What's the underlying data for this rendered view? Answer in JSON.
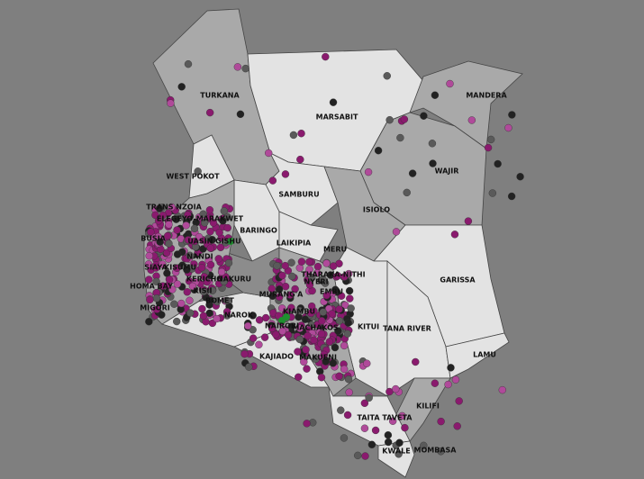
{
  "colors": {
    "background": "#7f7f7f",
    "light": "#e3e3e3",
    "mid": "#a9a9a9",
    "dark": "#8c8c8c",
    "dot_purple": "#8a1a6e",
    "dot_pink": "#b04a9a",
    "dot_dark": "#222222",
    "dot_grey": "#5a5a5a",
    "dot_green": "#1f8f2f"
  },
  "counties": [
    "TURKANA",
    "MARSABIT",
    "MANDERA",
    "WEST POKOT",
    "SAMBURU",
    "WAJIR",
    "ISIOLO",
    "TRANS NZOIA",
    "ELEGEYO-MARAKWET",
    "BUSIA",
    "UASIN GISHU",
    "BARINGO",
    "LAIKIPIA",
    "MERU",
    "SIAYA",
    "KISUMU",
    "NANDI",
    "THARAKA-NITHI",
    "KERICHO",
    "NAKURU",
    "NYERI",
    "GARISSA",
    "HOMA BAY",
    "KISII",
    "BOMET",
    "MURANG'A",
    "EMBU",
    "MIGORI",
    "NAROK",
    "KIAMBU",
    "NAIROBI",
    "MACHAKOS",
    "KITUI",
    "TANA RIVER",
    "LAMU",
    "KAJIADO",
    "MAKUENI",
    "TAITA TAVETA",
    "KILIFI",
    "KWALE",
    "MOMBASA"
  ]
}
